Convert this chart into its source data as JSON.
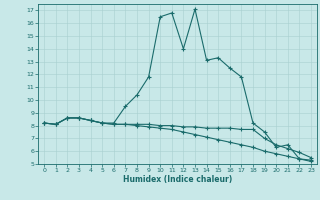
{
  "xlabel": "Humidex (Indice chaleur)",
  "background_color": "#c8e8e8",
  "grid_color": "#a8d0d0",
  "line_color": "#1a6b6b",
  "ylim": [
    5,
    17.5
  ],
  "xlim": [
    -0.5,
    23.5
  ],
  "yticks": [
    5,
    6,
    7,
    8,
    9,
    10,
    11,
    12,
    13,
    14,
    15,
    16,
    17
  ],
  "xticks": [
    0,
    1,
    2,
    3,
    4,
    5,
    6,
    7,
    8,
    9,
    10,
    11,
    12,
    13,
    14,
    15,
    16,
    17,
    18,
    19,
    20,
    21,
    22,
    23
  ],
  "line1_x": [
    0,
    1,
    2,
    3,
    4,
    5,
    6,
    7,
    8,
    9,
    10,
    11,
    12,
    13,
    14,
    15,
    16,
    17,
    18,
    19,
    20,
    21,
    22,
    23
  ],
  "line1_y": [
    8.2,
    8.1,
    8.6,
    8.6,
    8.4,
    8.2,
    8.2,
    9.5,
    10.4,
    11.8,
    16.5,
    16.8,
    14.0,
    17.1,
    13.1,
    13.3,
    12.5,
    11.8,
    8.2,
    7.5,
    6.3,
    6.5,
    5.4,
    5.3
  ],
  "line2_x": [
    0,
    1,
    2,
    3,
    4,
    5,
    6,
    7,
    8,
    9,
    10,
    11,
    12,
    13,
    14,
    15,
    16,
    17,
    18,
    19,
    20,
    21,
    22,
    23
  ],
  "line2_y": [
    8.2,
    8.1,
    8.6,
    8.6,
    8.4,
    8.2,
    8.1,
    8.1,
    8.1,
    8.1,
    8.0,
    8.0,
    7.9,
    7.9,
    7.8,
    7.8,
    7.8,
    7.7,
    7.7,
    7.0,
    6.5,
    6.2,
    5.9,
    5.5
  ],
  "line3_x": [
    0,
    1,
    2,
    3,
    4,
    5,
    6,
    7,
    8,
    9,
    10,
    11,
    12,
    13,
    14,
    15,
    16,
    17,
    18,
    19,
    20,
    21,
    22,
    23
  ],
  "line3_y": [
    8.2,
    8.1,
    8.6,
    8.6,
    8.4,
    8.2,
    8.1,
    8.1,
    8.0,
    7.9,
    7.8,
    7.7,
    7.5,
    7.3,
    7.1,
    6.9,
    6.7,
    6.5,
    6.3,
    6.0,
    5.8,
    5.6,
    5.4,
    5.2
  ]
}
